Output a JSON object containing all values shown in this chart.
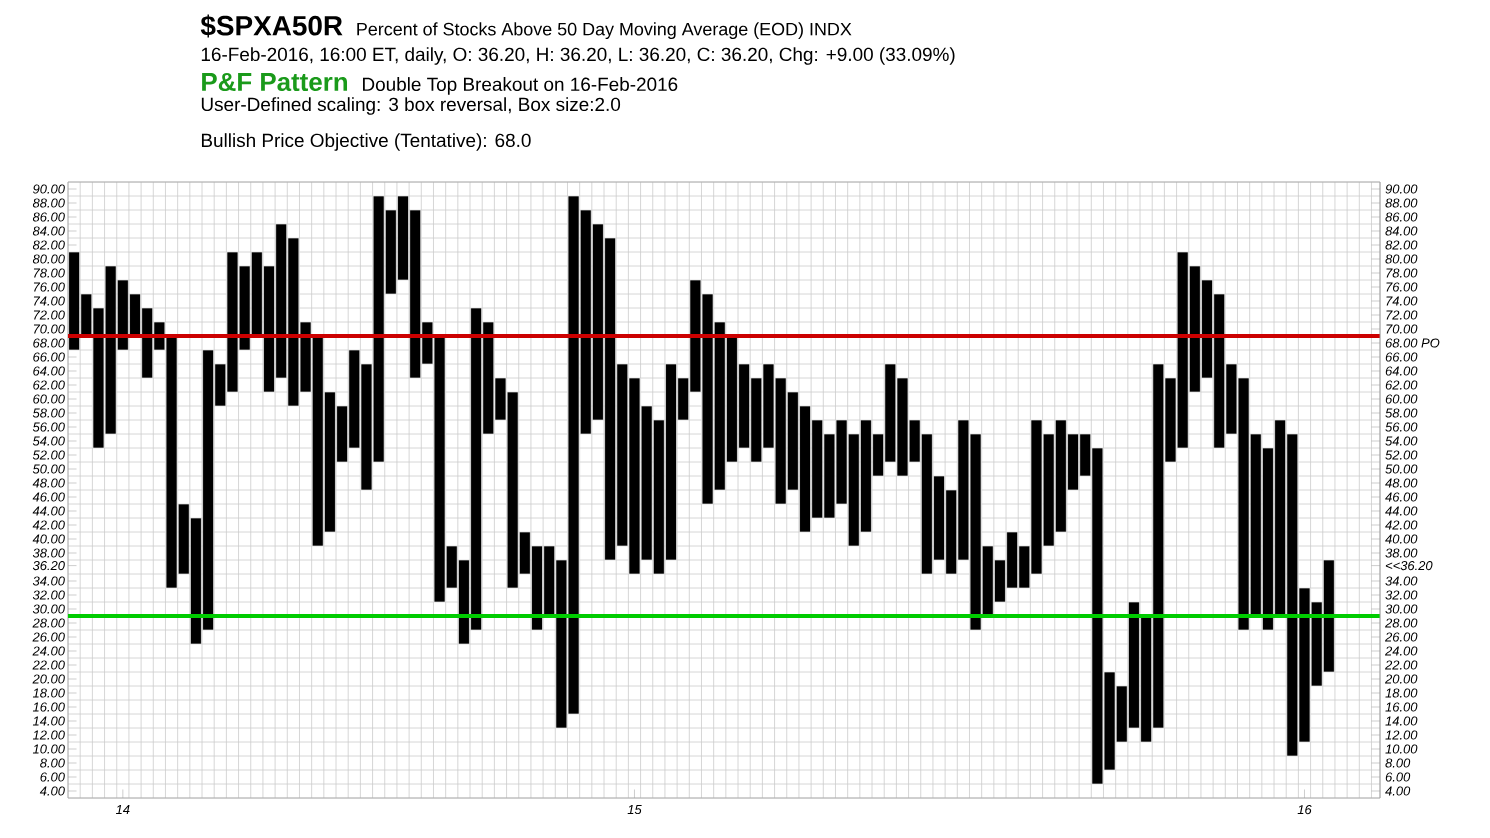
{
  "chart_data": {
    "type": "bar",
    "title": "$SPXA50R",
    "subtitle": "Percent of Stocks Above 50 Day Moving Average (EOD)  INDX",
    "annotations": [
      "16-Feb-2016, 16:00 ET, daily, O: 36.20, H: 36.20, L: 36.20, C: 36.20, Chg: +9.00 (33.09%)",
      "P&F Pattern",
      "Double Top Breakout on 16-Feb-2016",
      "User-Defined scaling: 3 box reversal, Box size:2.0",
      "Bullish Price Objective (Tentative): 68.0"
    ],
    "categories": [
      null,
      null,
      null,
      null,
      "14",
      null,
      null,
      null,
      null,
      null,
      null,
      null,
      null,
      null,
      null,
      null,
      null,
      null,
      null,
      null,
      null,
      null,
      null,
      null,
      null,
      null,
      null,
      null,
      null,
      null,
      null,
      null,
      null,
      null,
      null,
      null,
      null,
      null,
      null,
      null,
      null,
      null,
      null,
      null,
      null,
      null,
      "15",
      null,
      null,
      null,
      null,
      null,
      null,
      null,
      null,
      null,
      null,
      null,
      null,
      null,
      null,
      null,
      null,
      null,
      null,
      null,
      null,
      null,
      null,
      null,
      null,
      null,
      null,
      null,
      null,
      null,
      null,
      null,
      null,
      null,
      null,
      null,
      null,
      null,
      null,
      null,
      null,
      null,
      null,
      null,
      null,
      null,
      null,
      null,
      null,
      null,
      null,
      null,
      null,
      null,
      null,
      "16",
      null,
      null
    ],
    "base": [
      67,
      69,
      53,
      55,
      67,
      69,
      63,
      67,
      33,
      35,
      25,
      27,
      59,
      61,
      67,
      69,
      61,
      63,
      59,
      61,
      39,
      41,
      51,
      53,
      47,
      51,
      75,
      77,
      63,
      65,
      31,
      33,
      25,
      27,
      55,
      57,
      33,
      35,
      27,
      29,
      13,
      15,
      55,
      57,
      37,
      39,
      35,
      37,
      35,
      37,
      57,
      61,
      45,
      47,
      51,
      53,
      51,
      53,
      45,
      47,
      41,
      43,
      43,
      45,
      39,
      41,
      49,
      51,
      49,
      51,
      35,
      37,
      35,
      37,
      27,
      29,
      31,
      33,
      33,
      35,
      39,
      41,
      47,
      49,
      5,
      7,
      11,
      13,
      11,
      13,
      51,
      53,
      61,
      63,
      53,
      55,
      27,
      29,
      27,
      29,
      9,
      11,
      19,
      21
    ],
    "values": [
      14,
      6,
      20,
      24,
      10,
      6,
      10,
      4,
      36,
      10,
      18,
      40,
      6,
      20,
      12,
      12,
      18,
      22,
      24,
      10,
      30,
      20,
      8,
      14,
      18,
      38,
      12,
      12,
      24,
      6,
      38,
      6,
      12,
      46,
      16,
      6,
      28,
      6,
      12,
      10,
      24,
      74,
      32,
      28,
      46,
      26,
      28,
      22,
      22,
      28,
      6,
      16,
      30,
      24,
      18,
      12,
      12,
      12,
      18,
      14,
      18,
      14,
      12,
      12,
      16,
      16,
      6,
      14,
      14,
      6,
      20,
      12,
      12,
      20,
      28,
      10,
      6,
      8,
      6,
      22,
      16,
      16,
      8,
      6,
      48,
      14,
      8,
      18,
      18,
      52,
      12,
      28,
      18,
      14,
      22,
      10,
      36,
      26,
      26,
      28,
      46,
      22,
      12,
      16
    ],
    "color": "#000000",
    "ylim": [
      3,
      91
    ],
    "yticks": [
      {
        "value": 4,
        "label": "4.00"
      },
      {
        "value": 6,
        "label": "6.00"
      },
      {
        "value": 8,
        "label": "8.00"
      },
      {
        "value": 10,
        "label": "10.00"
      },
      {
        "value": 12,
        "label": "12.00"
      },
      {
        "value": 14,
        "label": "14.00"
      },
      {
        "value": 16,
        "label": "16.00"
      },
      {
        "value": 18,
        "label": "18.00"
      },
      {
        "value": 20,
        "label": "20.00"
      },
      {
        "value": 22,
        "label": "22.00"
      },
      {
        "value": 24,
        "label": "24.00"
      },
      {
        "value": 26,
        "label": "26.00"
      },
      {
        "value": 28,
        "label": "28.00"
      },
      {
        "value": 30,
        "label": "30.00"
      },
      {
        "value": 32,
        "label": "32.00"
      },
      {
        "value": 34,
        "label": "34.00"
      },
      {
        "value": 36.2,
        "label": "36.20"
      },
      {
        "value": 38,
        "label": "38.00"
      },
      {
        "value": 40,
        "label": "40.00"
      },
      {
        "value": 42,
        "label": "42.00"
      },
      {
        "value": 44,
        "label": "44.00"
      },
      {
        "value": 46,
        "label": "46.00"
      },
      {
        "value": 48,
        "label": "48.00"
      },
      {
        "value": 50,
        "label": "50.00"
      },
      {
        "value": 52,
        "label": "52.00"
      },
      {
        "value": 54,
        "label": "54.00"
      },
      {
        "value": 56,
        "label": "56.00"
      },
      {
        "value": 58,
        "label": "58.00"
      },
      {
        "value": 60,
        "label": "60.00"
      },
      {
        "value": 62,
        "label": "62.00"
      },
      {
        "value": 64,
        "label": "64.00"
      },
      {
        "value": 66,
        "label": "66.00"
      },
      {
        "value": 68,
        "label": "68.00"
      },
      {
        "value": 70,
        "label": "70.00"
      },
      {
        "value": 72,
        "label": "72.00"
      },
      {
        "value": 74,
        "label": "74.00"
      },
      {
        "value": 76,
        "label": "76.00"
      },
      {
        "value": 78,
        "label": "78.00"
      },
      {
        "value": 80,
        "label": "80.00"
      },
      {
        "value": 82,
        "label": "82.00"
      },
      {
        "value": 84,
        "label": "84.00"
      },
      {
        "value": 86,
        "label": "86.00"
      },
      {
        "value": 88,
        "label": "88.00"
      },
      {
        "value": 90,
        "label": "90.00"
      }
    ],
    "y2lim": [
      3,
      91
    ],
    "y2ticks": [
      {
        "value": 4,
        "label": "4.00"
      },
      {
        "value": 6,
        "label": "6.00"
      },
      {
        "value": 8,
        "label": "8.00"
      },
      {
        "value": 10,
        "label": "10.00"
      },
      {
        "value": 12,
        "label": "12.00"
      },
      {
        "value": 14,
        "label": "14.00"
      },
      {
        "value": 16,
        "label": "16.00"
      },
      {
        "value": 18,
        "label": "18.00"
      },
      {
        "value": 20,
        "label": "20.00"
      },
      {
        "value": 22,
        "label": "22.00"
      },
      {
        "value": 24,
        "label": "24.00"
      },
      {
        "value": 26,
        "label": "26.00"
      },
      {
        "value": 28,
        "label": "28.00"
      },
      {
        "value": 30,
        "label": "30.00"
      },
      {
        "value": 32,
        "label": "32.00"
      },
      {
        "value": 34,
        "label": "34.00"
      },
      {
        "value": 36.2,
        "label": "<<36.20"
      },
      {
        "value": 38,
        "label": "38.00"
      },
      {
        "value": 40,
        "label": "40.00"
      },
      {
        "value": 42,
        "label": "42.00"
      },
      {
        "value": 44,
        "label": "44.00"
      },
      {
        "value": 46,
        "label": "46.00"
      },
      {
        "value": 48,
        "label": "48.00"
      },
      {
        "value": 50,
        "label": "50.00"
      },
      {
        "value": 52,
        "label": "52.00"
      },
      {
        "value": 54,
        "label": "54.00"
      },
      {
        "value": 56,
        "label": "56.00"
      },
      {
        "value": 58,
        "label": "58.00"
      },
      {
        "value": 60,
        "label": "60.00"
      },
      {
        "value": 62,
        "label": "62.00"
      },
      {
        "value": 64,
        "label": "64.00"
      },
      {
        "value": 66,
        "label": "66.00"
      },
      {
        "value": 68,
        "label": "68.00 PO"
      },
      {
        "value": 70,
        "label": "70.00"
      },
      {
        "value": 72,
        "label": "72.00"
      },
      {
        "value": 74,
        "label": "74.00"
      },
      {
        "value": 76,
        "label": "76.00"
      },
      {
        "value": 78,
        "label": "78.00"
      },
      {
        "value": 80,
        "label": "80.00"
      },
      {
        "value": 82,
        "label": "82.00"
      },
      {
        "value": 84,
        "label": "84.00"
      },
      {
        "value": 86,
        "label": "86.00"
      },
      {
        "value": 88,
        "label": "88.00"
      },
      {
        "value": 90,
        "label": "90.00"
      }
    ],
    "ref_lines": [
      {
        "axis": "y",
        "value": 69,
        "color": "#cc0000"
      },
      {
        "axis": "y",
        "value": 29,
        "color": "#00cc00"
      }
    ],
    "grid": true
  }
}
